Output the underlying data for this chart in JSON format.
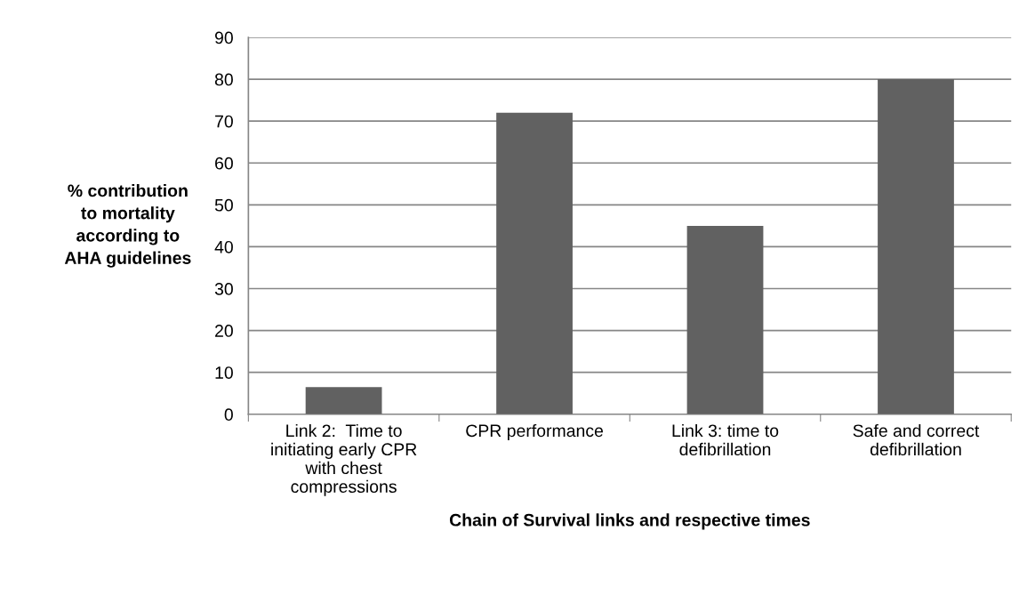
{
  "chart_data": {
    "type": "bar",
    "categories": [
      "Link 2:  Time to\ninitiating early CPR\nwith chest\ncompressions",
      "CPR performance",
      "Link 3: time to\ndefibrillation",
      "Safe and correct\ndefibrillation"
    ],
    "values": [
      6.5,
      72,
      45,
      80
    ],
    "color": "#616161",
    "xlabel": "Chain of Survival links and respective times",
    "ylabel": "% contribution\nto mortality\naccording to\nAHA guidelines",
    "ylim": [
      0,
      90
    ],
    "yticks": [
      0,
      10,
      20,
      30,
      40,
      50,
      60,
      70,
      80,
      90
    ],
    "grid": "y",
    "legend": false
  }
}
